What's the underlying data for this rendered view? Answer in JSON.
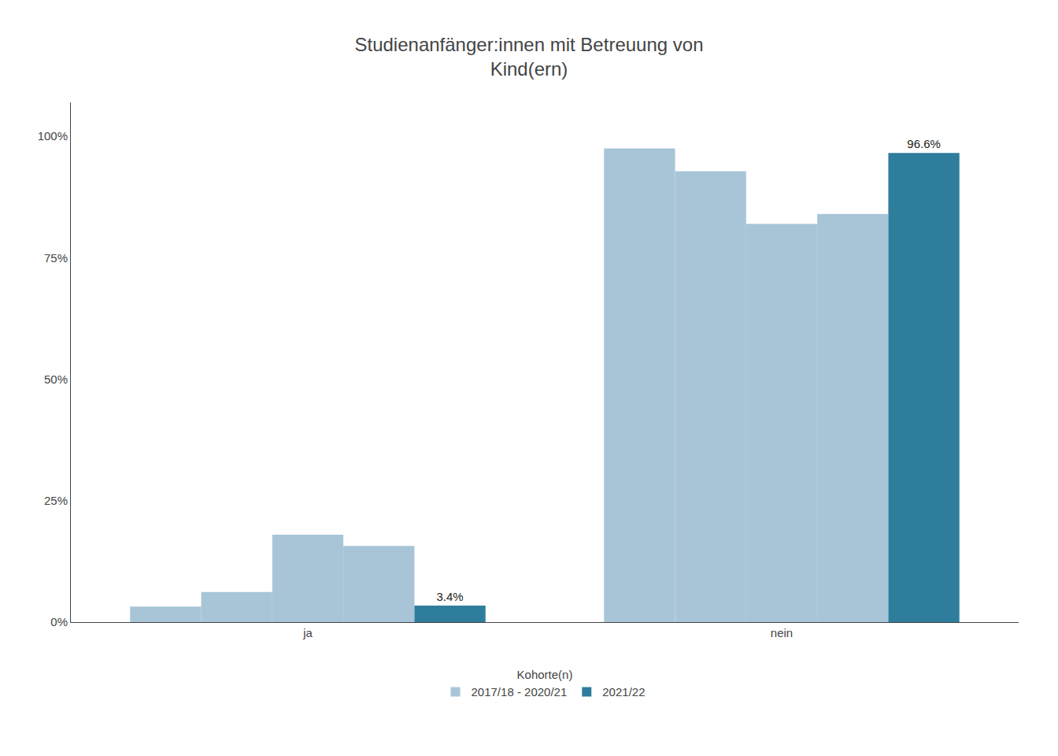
{
  "chart_data": {
    "type": "bar",
    "title": "Studienanfänger:innen mit Betreuung von\nKind(ern)",
    "categories": [
      "ja",
      "nein"
    ],
    "series": [
      {
        "name": "2017/18 - 2020/21",
        "color": "#a8c5d8",
        "values": [
          0.032,
          0.975
        ]
      },
      {
        "name": "2017/18 - 2020/21",
        "color": "#a8c5d8",
        "values": [
          0.062,
          0.928
        ]
      },
      {
        "name": "2017/18 - 2020/21",
        "color": "#a8c5d8",
        "values": [
          0.18,
          0.82
        ]
      },
      {
        "name": "2017/18 - 2020/21",
        "color": "#a8c5d8",
        "values": [
          0.157,
          0.84
        ]
      },
      {
        "name": "2021/22",
        "color": "#2e7d9c",
        "values": [
          0.034,
          0.966
        ],
        "data_labels": true,
        "value_labels": [
          "3.4%",
          "96.6%"
        ]
      }
    ],
    "legend_title": "Kohorte(n)",
    "legend": "bottom",
    "ylim": [
      0,
      1.07
    ],
    "yticks": [
      {
        "value": 0,
        "label": "0%"
      },
      {
        "value": 0.25,
        "label": "25%"
      },
      {
        "value": 0.5,
        "label": "50%"
      },
      {
        "value": 0.75,
        "label": "75%"
      },
      {
        "value": 1.0,
        "label": "100%"
      }
    ],
    "grid": false
  }
}
